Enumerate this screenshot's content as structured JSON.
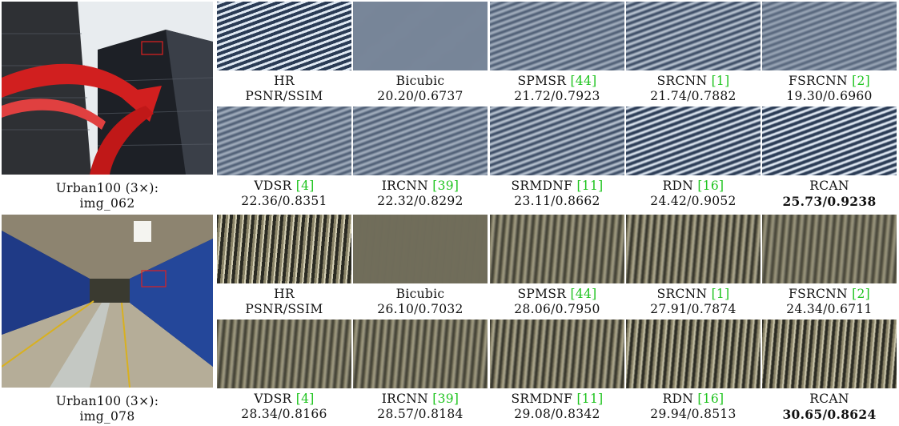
{
  "groups": [
    {
      "caption": [
        "Urban100 (3×):",
        "img_062"
      ],
      "crops": [
        {
          "method": "HR",
          "metric": "PSNR/SSIM"
        },
        {
          "method": "Bicubic",
          "metric": "20.20/0.6737"
        },
        {
          "method": "SPMSR",
          "ref": "[44]",
          "metric": "21.72/0.7923"
        },
        {
          "method": "SRCNN",
          "ref": "[1]",
          "metric": "21.74/0.7882"
        },
        {
          "method": "FSRCNN",
          "ref": "[2]",
          "metric": "19.30/0.6960"
        },
        {
          "method": "VDSR",
          "ref": "[4]",
          "metric": "22.36/0.8351"
        },
        {
          "method": "IRCNN",
          "ref": "[39]",
          "metric": "22.32/0.8292"
        },
        {
          "method": "SRMDNF",
          "ref": "[11]",
          "metric": "23.11/0.8662"
        },
        {
          "method": "RDN",
          "ref": "[16]",
          "metric": "24.42/0.9052"
        },
        {
          "method": "RCAN",
          "metric": "25.73/0.9238",
          "best": true
        }
      ]
    },
    {
      "caption": [
        "Urban100 (3×):",
        "img_078"
      ],
      "crops": [
        {
          "method": "HR",
          "metric": "PSNR/SSIM"
        },
        {
          "method": "Bicubic",
          "metric": "26.10/0.7032"
        },
        {
          "method": "SPMSR",
          "ref": "[44]",
          "metric": "28.06/0.7950"
        },
        {
          "method": "SRCNN",
          "ref": "[1]",
          "metric": "27.91/0.7874"
        },
        {
          "method": "FSRCNN",
          "ref": "[2]",
          "metric": "24.34/0.6711"
        },
        {
          "method": "VDSR",
          "ref": "[4]",
          "metric": "28.34/0.8166"
        },
        {
          "method": "IRCNN",
          "ref": "[39]",
          "metric": "28.57/0.8184"
        },
        {
          "method": "SRMDNF",
          "ref": "[11]",
          "metric": "29.08/0.8342"
        },
        {
          "method": "RDN",
          "ref": "[16]",
          "metric": "29.94/0.8513"
        },
        {
          "method": "RCAN",
          "metric": "30.65/0.8624",
          "best": true
        }
      ]
    }
  ]
}
